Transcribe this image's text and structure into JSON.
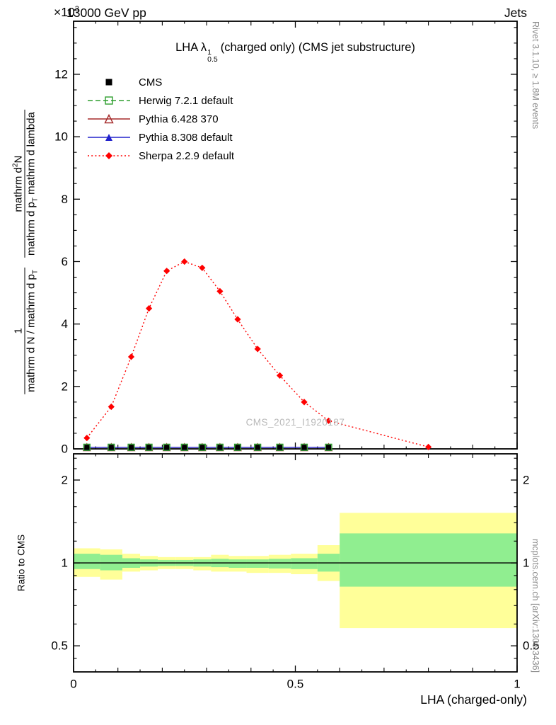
{
  "header": {
    "scale_prefix": "×10",
    "scale_exponent": "3",
    "beam_label": "13000 GeV pp",
    "topic_label": "Jets"
  },
  "plot_title": {
    "prefix": "LHA λ",
    "sup": "1",
    "sub": "0.5",
    "suffix": "(charged only) (CMS jet substructure)"
  },
  "watermark": "CMS_2021_I1920187",
  "side_notes": {
    "right_top": "Rivet 3.1.10, ≥ 1.8M events",
    "right_bottom": "mcplots.cern.ch [arXiv:1306.3436]"
  },
  "axis_labels": {
    "y_frac1_num": "1",
    "y_frac1_den_main": "mathrm d N / mathrm d p",
    "y_frac1_den_sub": "T",
    "y_frac2_num_main": "mathrm d",
    "y_frac2_num_sup": "2",
    "y_frac2_num_tail": "N",
    "y_frac2_den_main": "mathrm d p",
    "y_frac2_den_sub": "T",
    "y_frac2_den_tail": " mathrm d lambda",
    "ratio_y_label": "Ratio to CMS",
    "x_label": "LHA (charged-only)"
  },
  "chart_data": {
    "type": "line",
    "title": "LHA lambda^1_0.5 (charged only) (CMS jet substructure)",
    "xlabel": "LHA (charged-only)",
    "y_scale_factor": "×10^3",
    "main_panel": {
      "xlim": [
        0,
        1
      ],
      "ylim": [
        0,
        13.7
      ],
      "xticks": [
        0,
        0.5,
        1
      ],
      "yticks": [
        0,
        2,
        4,
        6,
        8,
        10,
        12
      ],
      "x": [
        0.03,
        0.085,
        0.13,
        0.17,
        0.21,
        0.25,
        0.29,
        0.33,
        0.37,
        0.415,
        0.465,
        0.52,
        0.575,
        0.8
      ],
      "series": [
        {
          "name": "CMS",
          "color": "#000000",
          "marker": "square-filled",
          "line": "none",
          "values": [
            0.05,
            0.05,
            0.05,
            0.05,
            0.05,
            0.05,
            0.05,
            0.05,
            0.05,
            0.05,
            0.05,
            0.05,
            0.05,
            null
          ]
        },
        {
          "name": "Herwig 7.2.1 default",
          "color": "#2e9e2e",
          "marker": "square-open",
          "line": "dashed",
          "values": [
            0.05,
            0.05,
            0.05,
            0.05,
            0.05,
            0.05,
            0.05,
            0.05,
            0.05,
            0.05,
            0.05,
            0.05,
            0.05,
            null
          ]
        },
        {
          "name": "Pythia 6.428 370",
          "color": "#a52a2a",
          "marker": "triangle-open",
          "line": "solid",
          "values": [
            0.05,
            0.05,
            0.05,
            0.05,
            0.05,
            0.05,
            0.05,
            0.05,
            0.05,
            0.05,
            0.05,
            0.05,
            0.05,
            null
          ]
        },
        {
          "name": "Pythia 8.308 default",
          "color": "#2222cc",
          "marker": "triangle-filled",
          "line": "solid",
          "values": [
            0.05,
            0.05,
            0.05,
            0.05,
            0.05,
            0.05,
            0.05,
            0.05,
            0.05,
            0.05,
            0.05,
            0.05,
            0.05,
            null
          ]
        },
        {
          "name": "Sherpa 2.2.9 default",
          "color": "#ff0000",
          "marker": "diamond-filled",
          "line": "dotted",
          "values": [
            0.35,
            1.35,
            2.95,
            4.5,
            5.7,
            6.0,
            5.8,
            5.05,
            4.15,
            3.2,
            2.35,
            1.5,
            0.9,
            0.06
          ]
        }
      ]
    },
    "ratio_panel": {
      "label": "Ratio to CMS",
      "yscale": "log",
      "ylim": [
        0.402,
        2.49
      ],
      "yticks": [
        0.5,
        1,
        2
      ],
      "reference": 1,
      "bin_edges": [
        0,
        0.06,
        0.11,
        0.15,
        0.19,
        0.23,
        0.27,
        0.31,
        0.35,
        0.39,
        0.44,
        0.49,
        0.55,
        0.6,
        1
      ],
      "band_colors": {
        "yellow": "#ffff99",
        "green": "#90ee90"
      },
      "yellow_band": [
        [
          0.89,
          1.13
        ],
        [
          0.87,
          1.12
        ],
        [
          0.93,
          1.08
        ],
        [
          0.94,
          1.06
        ],
        [
          0.95,
          1.05
        ],
        [
          0.95,
          1.05
        ],
        [
          0.94,
          1.05
        ],
        [
          0.93,
          1.07
        ],
        [
          0.93,
          1.06
        ],
        [
          0.92,
          1.06
        ],
        [
          0.92,
          1.07
        ],
        [
          0.91,
          1.08
        ],
        [
          0.86,
          1.16
        ],
        [
          0.58,
          1.52
        ]
      ],
      "green_band": [
        [
          0.95,
          1.08
        ],
        [
          0.94,
          1.07
        ],
        [
          0.96,
          1.04
        ],
        [
          0.97,
          1.03
        ],
        [
          0.975,
          1.025
        ],
        [
          0.975,
          1.025
        ],
        [
          0.97,
          1.03
        ],
        [
          0.965,
          1.035
        ],
        [
          0.96,
          1.03
        ],
        [
          0.96,
          1.03
        ],
        [
          0.955,
          1.035
        ],
        [
          0.95,
          1.04
        ],
        [
          0.93,
          1.08
        ],
        [
          0.82,
          1.28
        ]
      ]
    }
  }
}
